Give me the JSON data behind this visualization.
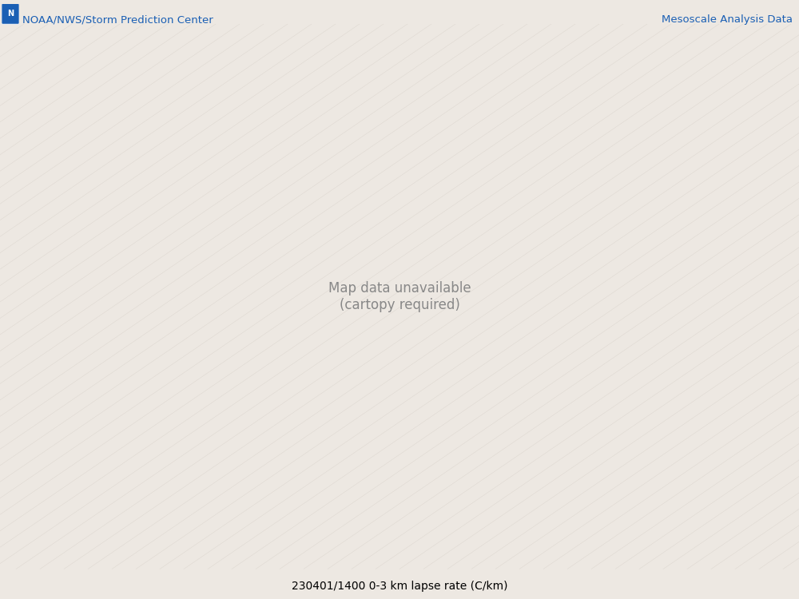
{
  "title_left": "NOAA/NWS/Storm Prediction Center",
  "title_right": "Mesoscale Analysis Data",
  "bottom_label": "230401/1400 0-3 km lapse rate (C/km)",
  "bg_color": "#ede8e2",
  "map_bg_color": "#ede8e2",
  "border_color": "#808080",
  "figsize": [
    10.0,
    7.5
  ],
  "dpi": 100,
  "contour_colors": {
    "5.0": "#56c8e8",
    "5.5": "#56c8e8",
    "6.0": "#228B22",
    "6.5": "#ff8c00",
    "7.0": "#ff8c00",
    "7.5": "#ff8c00",
    "8.0": "#cc0000"
  },
  "hatch_color": "#cc0000",
  "label_color_cyan": "#56c8e8",
  "label_color_green": "#228B22",
  "label_color_orange": "#ff8c00",
  "label_color_red": "#cc0000"
}
